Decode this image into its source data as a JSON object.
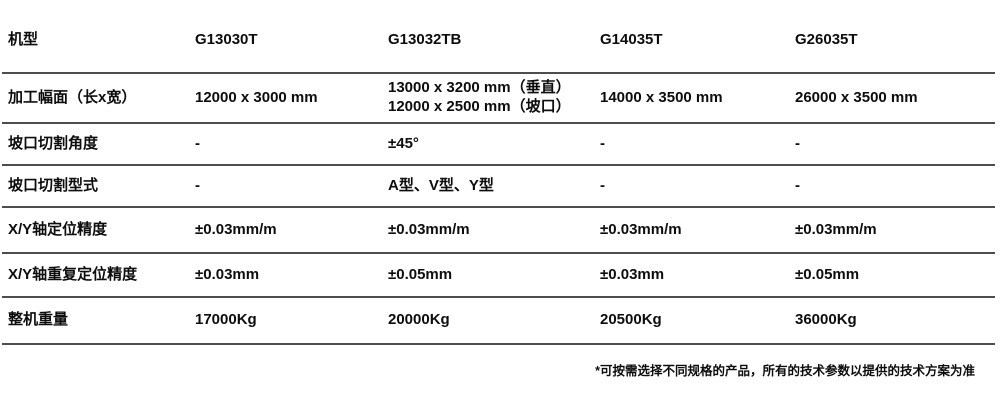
{
  "table": {
    "header": [
      "机型",
      "G13030T",
      "G13032TB",
      "G14035T",
      "G26035T"
    ],
    "rows": [
      {
        "label": "加工幅面（长x宽）",
        "values": [
          "12000 x 3000 mm",
          "13000 x 3200 mm（垂直）\n12000 x 2500 mm（坡口）",
          "14000 x 3500 mm",
          "26000 x 3500 mm"
        ]
      },
      {
        "label": "坡口切割角度",
        "values": [
          "-",
          "±45°",
          "-",
          "-"
        ]
      },
      {
        "label": "坡口切割型式",
        "values": [
          "-",
          "A型、V型、Y型",
          "-",
          "-"
        ]
      },
      {
        "label": "X/Y轴定位精度",
        "values": [
          "±0.03mm/m",
          "±0.03mm/m",
          "±0.03mm/m",
          "±0.03mm/m"
        ]
      },
      {
        "label": "X/Y轴重复定位精度",
        "values": [
          "±0.03mm",
          "±0.05mm",
          "±0.03mm",
          "±0.05mm"
        ]
      },
      {
        "label": "整机重量",
        "values": [
          "17000Kg",
          "20000Kg",
          "20500Kg",
          "36000Kg"
        ]
      }
    ]
  },
  "footnote": "*可按需选择不同规格的产品，所有的技术参数以提供的技术方案为准",
  "colors": {
    "text": "#0d0d0d",
    "rule_line": "#4d4d4d",
    "background": "#ffffff"
  }
}
